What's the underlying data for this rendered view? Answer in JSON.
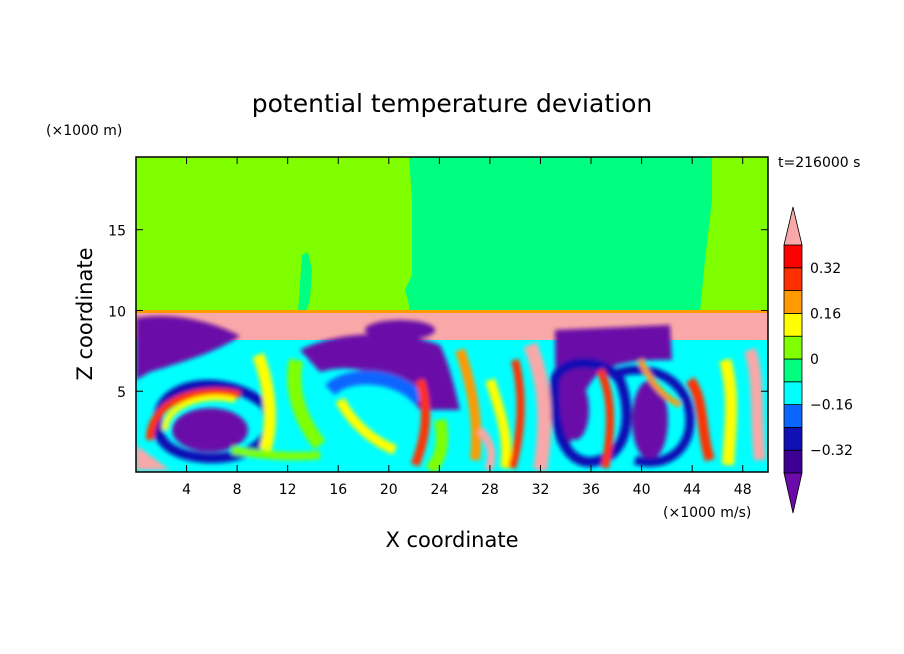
{
  "chart_data": {
    "type": "heatmap",
    "title": "potential temperature deviation",
    "xlabel": "X coordinate",
    "ylabel": "Z coordinate",
    "x_unit": "(×1000 m/s)",
    "y_unit": "(×1000 m)",
    "time_label": "t=216000 s",
    "xlim": [
      0,
      50
    ],
    "ylim": [
      0,
      19.5
    ],
    "x_ticks": [
      4,
      8,
      12,
      16,
      20,
      24,
      28,
      32,
      36,
      40,
      44,
      48
    ],
    "y_ticks": [
      5,
      10,
      15
    ],
    "colorbar": {
      "levels": [
        -0.4,
        -0.32,
        -0.24,
        -0.16,
        -0.08,
        0,
        0.08,
        0.16,
        0.24,
        0.32,
        0.4
      ],
      "labels": [
        {
          "value": 0.32,
          "text": "0.32"
        },
        {
          "value": 0.16,
          "text": "0.16"
        },
        {
          "value": 0,
          "text": "0"
        },
        {
          "value": -0.16,
          "text": "−0.16"
        },
        {
          "value": -0.32,
          "text": "−0.32"
        }
      ],
      "colors": [
        "#6a0aa8",
        "#3c0094",
        "#1010b4",
        "#0a66ff",
        "#00ffff",
        "#00ff80",
        "#80ff00",
        "#ffff00",
        "#ff9a00",
        "#ff3000",
        "#ff0000",
        "#f8a8a8"
      ]
    },
    "regions": {
      "upper_layer_value": 0.04,
      "upper_layer_secondary_value": -0.04,
      "stable_layer_value": 0.45,
      "stable_layer_height": 10.2,
      "lower_layer_range": [
        -0.45,
        0.45
      ]
    }
  }
}
